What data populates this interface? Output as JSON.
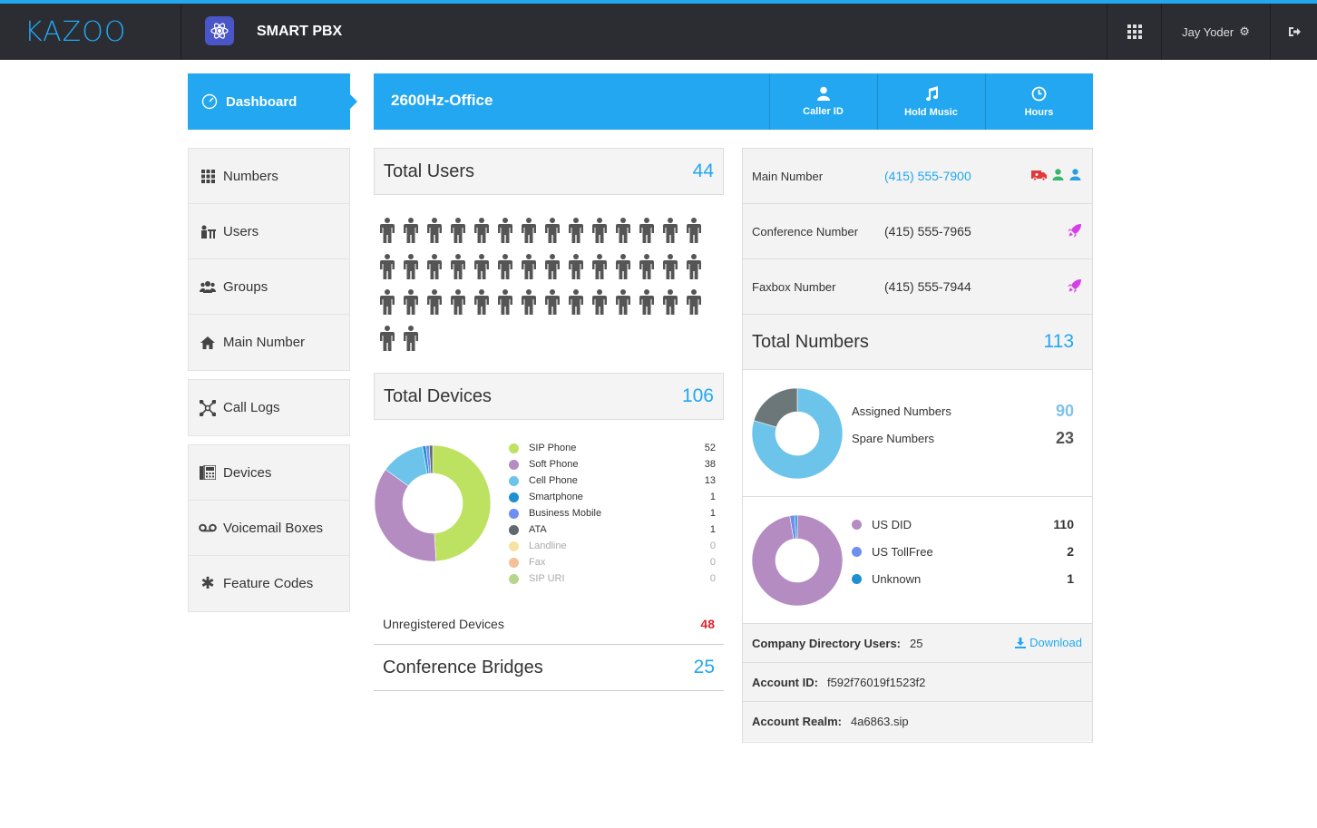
{
  "topbar": {
    "logo": "KAZOO",
    "app_title": "SMART PBX",
    "user_name": "Jay Yoder"
  },
  "nav": {
    "dashboard": "Dashboard",
    "group1": [
      "Numbers",
      "Users",
      "Groups",
      "Main Number"
    ],
    "group2": [
      "Call Logs"
    ],
    "group3": [
      "Devices",
      "Voicemail Boxes",
      "Feature Codes"
    ]
  },
  "banner": {
    "account_name": "2600Hz-Office",
    "buttons": [
      "Caller ID",
      "Hold Music",
      "Hours"
    ]
  },
  "users": {
    "title": "Total Users",
    "count": "44"
  },
  "devices": {
    "title": "Total Devices",
    "count": "106",
    "unregistered_label": "Unregistered Devices",
    "unregistered_count": "48"
  },
  "conference": {
    "title": "Conference Bridges",
    "count": "25"
  },
  "chart_data": [
    {
      "type": "pie",
      "categories": [
        "SIP Phone",
        "Soft Phone",
        "Cell Phone",
        "Smartphone",
        "Business Mobile",
        "ATA",
        "Landline",
        "Fax",
        "SIP URI"
      ],
      "values": [
        52,
        38,
        13,
        1,
        1,
        1,
        0,
        0,
        0
      ],
      "colors": [
        "#bde262",
        "#b48cc2",
        "#6cc4ea",
        "#1e8fd0",
        "#6f8ef1",
        "#5e6a6e",
        "#f6e3a3",
        "#f4c196",
        "#b6d58d"
      ]
    },
    {
      "type": "pie",
      "categories": [
        "Assigned Numbers",
        "Spare Numbers"
      ],
      "values": [
        90,
        23
      ],
      "colors": [
        "#6cc4ea",
        "#6b7778"
      ]
    },
    {
      "type": "pie",
      "categories": [
        "US DID",
        "US TollFree",
        "Unknown"
      ],
      "values": [
        110,
        2,
        1
      ],
      "colors": [
        "#b48cc2",
        "#6f8ef1",
        "#1e8fd0"
      ]
    }
  ],
  "numbers": {
    "main_label": "Main Number",
    "main_value": "(415) 555-7900",
    "conf_label": "Conference Number",
    "conf_value": "(415) 555-7965",
    "fax_label": "Faxbox Number",
    "fax_value": "(415) 555-7944",
    "total_title": "Total Numbers",
    "total_count": "113",
    "assigned_label": "Assigned Numbers",
    "assigned_value": "90",
    "spare_label": "Spare Numbers",
    "spare_value": "23",
    "types": [
      {
        "label": "US DID",
        "value": "110",
        "color": "#b48cc2"
      },
      {
        "label": "US TollFree",
        "value": "2",
        "color": "#6f8ef1"
      },
      {
        "label": "Unknown",
        "value": "1",
        "color": "#1e8fd0"
      }
    ]
  },
  "info": {
    "directory_label": "Company Directory Users:",
    "directory_value": "25",
    "download": "Download",
    "account_id_label": "Account ID:",
    "account_id_value": "f592f76019f1523f2",
    "realm_label": "Account Realm:",
    "realm_value": "4a6863.sip"
  },
  "colors": {
    "accent": "#22a7f0",
    "topbar": "#2b2d33",
    "alert": "#e0262e",
    "rocket": "#d63ee8"
  }
}
